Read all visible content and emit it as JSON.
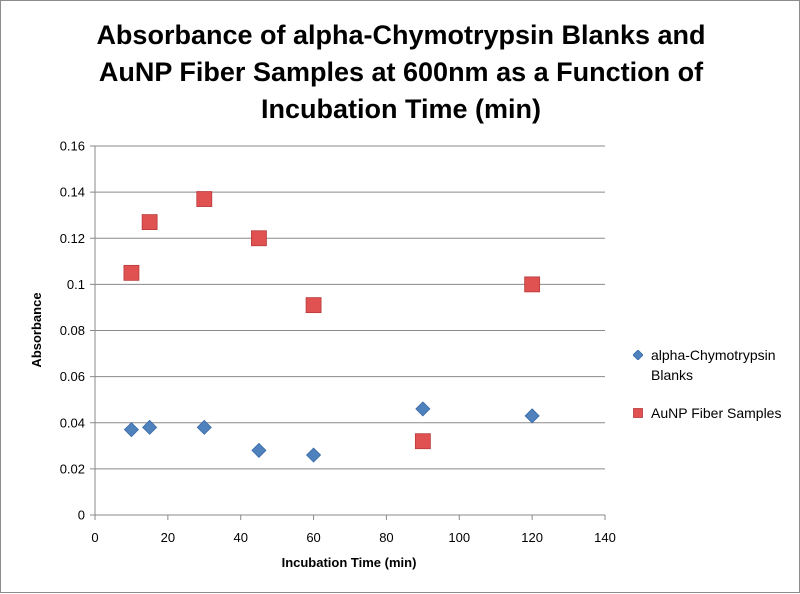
{
  "chart_data": {
    "type": "scatter",
    "title_lines": [
      "Absorbance of alpha-Chymotrypsin Blanks and",
      "AuNP Fiber Samples at 600nm as a Function of",
      "Incubation Time (min)"
    ],
    "xlabel": "Incubation Time (min)",
    "ylabel": "Absorbance",
    "xlim": [
      0,
      140
    ],
    "ylim": [
      0,
      0.16
    ],
    "x_ticks": [
      "0",
      "20",
      "40",
      "60",
      "80",
      "100",
      "120",
      "140"
    ],
    "y_ticks": [
      "0",
      "0.02",
      "0.04",
      "0.06",
      "0.08",
      "0.1",
      "0.12",
      "0.14",
      "0.16"
    ],
    "grid": true,
    "legend_position": "right",
    "series": [
      {
        "name": "alpha-Chymotrypsin Blanks",
        "legend_lines": [
          "alpha-Chymotrypsin",
          "Blanks"
        ],
        "marker": "diamond",
        "color": "#4f81bd",
        "x": [
          10,
          15,
          30,
          45,
          60,
          90,
          120
        ],
        "y": [
          0.037,
          0.038,
          0.038,
          0.028,
          0.026,
          0.046,
          0.043
        ]
      },
      {
        "name": "AuNP Fiber Samples",
        "legend_lines": [
          "AuNP Fiber Samples"
        ],
        "marker": "square",
        "color": "#e05252",
        "x": [
          10,
          15,
          30,
          45,
          60,
          90,
          120
        ],
        "y": [
          0.105,
          0.127,
          0.137,
          0.12,
          0.091,
          0.032,
          0.1
        ]
      }
    ]
  }
}
